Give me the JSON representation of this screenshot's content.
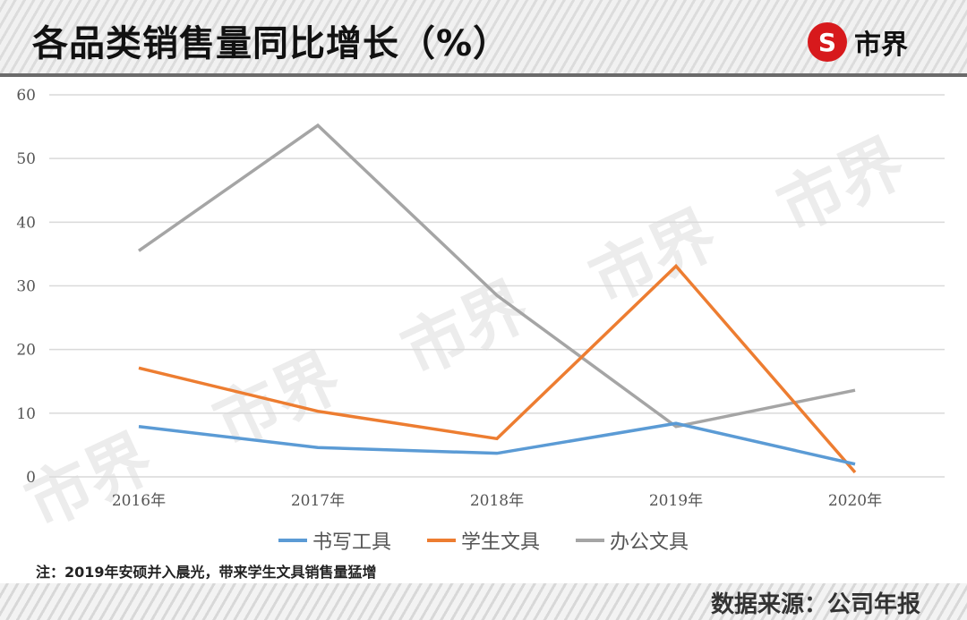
{
  "header": {
    "title": "各品类销售量同比增长（%）",
    "logo_icon": "currency-s-icon",
    "logo_symbol": "S",
    "logo_text": "市界",
    "logo_color": "#d7191c"
  },
  "chart_data": {
    "type": "line",
    "title": "各品类销售量同比增长（%）",
    "xlabel": "",
    "ylabel": "",
    "categories": [
      "2016年",
      "2017年",
      "2018年",
      "2019年",
      "2020年"
    ],
    "y_ticks": [
      "0",
      "10",
      "20",
      "30",
      "40",
      "50",
      "60"
    ],
    "ylim": [
      0,
      60
    ],
    "grid": true,
    "legend_position": "bottom",
    "series": [
      {
        "name": "书写工具",
        "color": "#5b9bd5",
        "values": [
          7.9,
          4.6,
          3.7,
          8.4,
          2.0
        ]
      },
      {
        "name": "学生文具",
        "color": "#ed7d31",
        "values": [
          17.1,
          10.3,
          6.0,
          33.1,
          0.7
        ]
      },
      {
        "name": "办公文具",
        "color": "#a5a5a5",
        "values": [
          35.5,
          55.2,
          28.5,
          7.9,
          13.6
        ]
      }
    ]
  },
  "watermark": "市界",
  "note": "注：2019年安硕并入晨光，带来学生文具销售量猛增",
  "source": "数据来源：公司年报"
}
